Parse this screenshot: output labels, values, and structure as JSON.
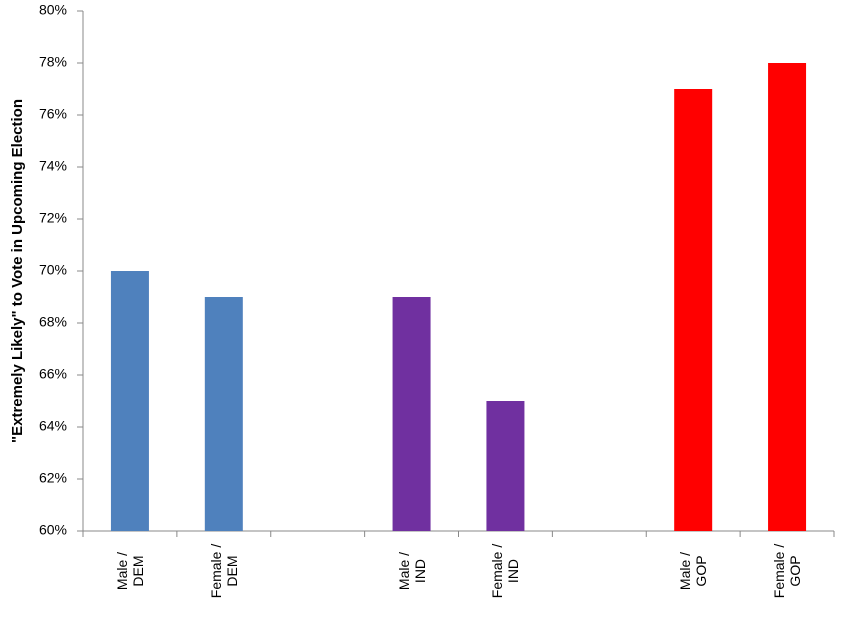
{
  "chart_data": {
    "type": "bar",
    "y_label": "\"Extremely Likely\" to Vote in Upcoming Election",
    "categories": [
      "Male / DEM",
      "Female / DEM",
      null,
      "Male / IND",
      "Female / IND",
      null,
      "Male / GOP",
      "Female / GOP"
    ],
    "values": [
      70,
      69,
      null,
      69,
      65,
      null,
      77,
      78
    ],
    "colors": [
      "#4f81bd",
      "#4f81bd",
      null,
      "#7030a0",
      "#7030a0",
      null,
      "#ff0000",
      "#ff0000"
    ],
    "ylim": [
      60,
      80
    ],
    "yticks": [
      {
        "value": 60,
        "label": "60%"
      },
      {
        "value": 62,
        "label": "62%"
      },
      {
        "value": 64,
        "label": "64%"
      },
      {
        "value": 66,
        "label": "66%"
      },
      {
        "value": 68,
        "label": "68%"
      },
      {
        "value": 70,
        "label": "70%"
      },
      {
        "value": 72,
        "label": "72%"
      },
      {
        "value": 74,
        "label": "74%"
      },
      {
        "value": 76,
        "label": "76%"
      },
      {
        "value": 78,
        "label": "78%"
      },
      {
        "value": 80,
        "label": "80%"
      }
    ],
    "grid": false
  }
}
